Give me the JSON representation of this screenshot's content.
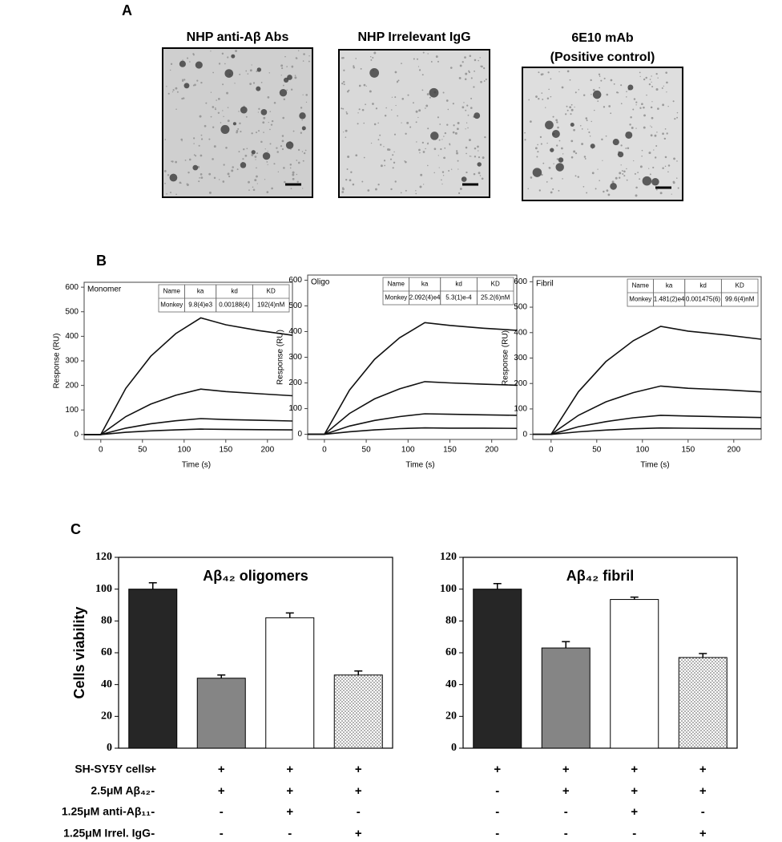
{
  "panel_labels": [
    "A",
    "B",
    "C"
  ],
  "images": [
    {
      "title": [
        "NHP anti-Aβ Abs"
      ]
    },
    {
      "title": [
        "NHP Irrelevant IgG"
      ]
    },
    {
      "title": [
        "6E10 mAb",
        "(Positive control)"
      ]
    }
  ],
  "chart_data": [
    {
      "type": "line",
      "title": "Monomer",
      "xlabel": "Time (s)",
      "ylabel": "Response (RU)",
      "x": [
        -20,
        0,
        30,
        60,
        90,
        120,
        150,
        190,
        230
      ],
      "xlim": [
        -20,
        230
      ],
      "xticks": [
        0,
        50,
        100,
        150,
        200
      ],
      "ylim": [
        -20,
        620
      ],
      "yticks": [
        0,
        100,
        200,
        300,
        400,
        500,
        600
      ],
      "series": [
        {
          "color": "#111111",
          "values": [
            0,
            0,
            188,
            319,
            411,
            475,
            447,
            423,
            404
          ]
        },
        {
          "color": "#111111",
          "values": [
            0,
            0,
            73,
            124,
            160,
            185,
            175,
            166,
            158
          ]
        },
        {
          "color": "#111111",
          "values": [
            0,
            0,
            26,
            44,
            56,
            65,
            61,
            58,
            55
          ]
        },
        {
          "color": "#111111",
          "values": [
            0,
            0,
            9,
            15,
            19,
            22,
            21,
            20,
            19
          ]
        }
      ],
      "table": {
        "header": [
          "Name",
          "ka",
          "kd",
          "KD"
        ],
        "rows": [
          [
            "Monkey",
            "9.8(4)e3",
            "0.00188(4)",
            "192(4)nM"
          ]
        ]
      }
    },
    {
      "type": "line",
      "title": "Oligo",
      "xlabel": "Time (s)",
      "ylabel": "Response (RU)",
      "x": [
        -20,
        0,
        30,
        60,
        90,
        120,
        150,
        190,
        230
      ],
      "xlim": [
        -20,
        230
      ],
      "xticks": [
        0,
        50,
        100,
        150,
        200
      ],
      "ylim": [
        -20,
        620
      ],
      "yticks": [
        0,
        100,
        200,
        300,
        400,
        500,
        600
      ],
      "series": [
        {
          "color": "#111111",
          "values": [
            0,
            0,
            172,
            292,
            376,
            435,
            424,
            413,
            405
          ]
        },
        {
          "color": "#111111",
          "values": [
            0,
            0,
            81,
            138,
            177,
            205,
            200,
            195,
            191
          ]
        },
        {
          "color": "#111111",
          "values": [
            0,
            0,
            32,
            54,
            69,
            80,
            78,
            76,
            74
          ]
        },
        {
          "color": "#111111",
          "values": [
            0,
            0,
            10,
            17,
            22,
            25,
            24,
            24,
            23
          ]
        }
      ],
      "table": {
        "header": [
          "Name",
          "ka",
          "kd",
          "KD"
        ],
        "rows": [
          [
            "Monkey",
            "2.092(4)e4",
            "5.3(1)e-4",
            "25.2(6)nM"
          ]
        ]
      }
    },
    {
      "type": "line",
      "title": "Fibril",
      "xlabel": "Time (s)",
      "ylabel": "Response (RU)",
      "x": [
        -20,
        0,
        30,
        60,
        90,
        120,
        150,
        190,
        230
      ],
      "xlim": [
        -20,
        230
      ],
      "xticks": [
        0,
        50,
        100,
        150,
        200
      ],
      "ylim": [
        -20,
        620
      ],
      "yticks": [
        0,
        100,
        200,
        300,
        400,
        500,
        600
      ],
      "series": [
        {
          "color": "#111111",
          "values": [
            0,
            0,
            168,
            286,
            368,
            425,
            406,
            391,
            374
          ]
        },
        {
          "color": "#111111",
          "values": [
            0,
            0,
            75,
            128,
            164,
            190,
            181,
            175,
            167
          ]
        },
        {
          "color": "#111111",
          "values": [
            0,
            0,
            30,
            50,
            65,
            75,
            72,
            69,
            66
          ]
        },
        {
          "color": "#111111",
          "values": [
            0,
            0,
            10,
            17,
            22,
            25,
            24,
            23,
            22
          ]
        }
      ],
      "table": {
        "header": [
          "Name",
          "ka",
          "kd",
          "KD"
        ],
        "rows": [
          [
            "Monkey",
            "1.481(2)e4",
            "0.001475(6)",
            "99.6(4)nM"
          ]
        ]
      }
    },
    {
      "type": "bar",
      "title": "Aβ₄₂ oligomers",
      "ylabel": "Cells viability",
      "categories": [
        null,
        null,
        null,
        null
      ],
      "values": [
        100,
        44,
        82,
        46
      ],
      "errors": [
        4,
        2,
        3,
        2.5
      ],
      "colors": [
        "#262626",
        "#858585",
        "#ffffff",
        "#ffffff"
      ],
      "dotted": [
        false,
        false,
        false,
        true
      ],
      "ylim": [
        0,
        120
      ],
      "yticks": [
        0,
        20,
        40,
        60,
        80,
        100,
        120
      ]
    },
    {
      "type": "bar",
      "title": "Aβ₄₂ fibril",
      "categories": [
        null,
        null,
        null,
        null
      ],
      "values": [
        100,
        63,
        93.5,
        57
      ],
      "errors": [
        3.5,
        4,
        1.5,
        2.5
      ],
      "colors": [
        "#262626",
        "#858585",
        "#ffffff",
        "#ffffff"
      ],
      "dotted": [
        false,
        false,
        false,
        true
      ],
      "ylim": [
        0,
        120
      ],
      "yticks": [
        0,
        20,
        40,
        60,
        80,
        100,
        120
      ]
    }
  ],
  "treatments": {
    "rows": [
      {
        "label": "SH-SY5Y cells",
        "cells": [
          "+",
          "+",
          "+",
          "+",
          "+",
          "+",
          "+",
          "+"
        ]
      },
      {
        "label": "2.5μM Aβ₄₂",
        "cells": [
          "-",
          "+",
          "+",
          "+",
          "-",
          "+",
          "+",
          "+"
        ]
      },
      {
        "label": "1.25μM anti-Aβ₁₁",
        "cells": [
          "-",
          "-",
          "+",
          "-",
          "-",
          "-",
          "+",
          "-"
        ]
      },
      {
        "label": "1.25μM Irrel. IgG",
        "cells": [
          "-",
          "-",
          "-",
          "+",
          "-",
          "-",
          "-",
          "+"
        ]
      }
    ]
  }
}
